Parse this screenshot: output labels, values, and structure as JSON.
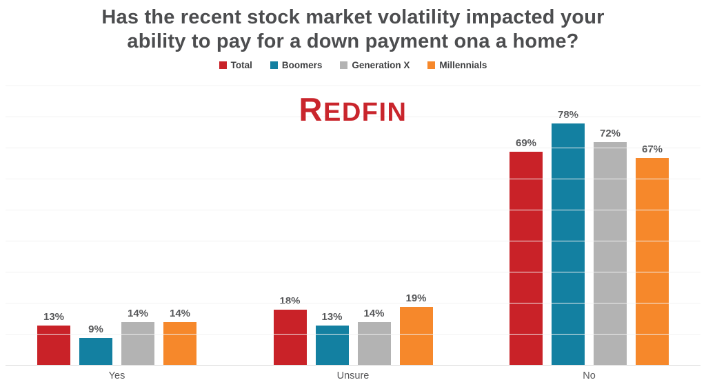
{
  "title_lines": [
    "Has the recent stock market volatility impacted your",
    "ability to pay for a down payment ona a home?"
  ],
  "logo_text": "REDFIN",
  "colors": {
    "brand_red": "#c9252c",
    "title_text": "#4c4d4f",
    "label_text": "#57585a",
    "gridline": "#f1f1f1",
    "axis_line": "#d9d9d9"
  },
  "chart_data": {
    "type": "bar",
    "title": "Has the recent stock market volatility impacted your ability to pay for a down payment ona a home?",
    "categories": [
      "Yes",
      "Unsure",
      "No"
    ],
    "series": [
      {
        "name": "Total",
        "color": "#c92228",
        "values": [
          13,
          18,
          69
        ]
      },
      {
        "name": "Boomers",
        "color": "#1380a1",
        "values": [
          9,
          13,
          78
        ]
      },
      {
        "name": "Generation X",
        "color": "#b3b3b3",
        "values": [
          14,
          14,
          72
        ]
      },
      {
        "name": "Millennials",
        "color": "#f6882b",
        "values": [
          14,
          19,
          67
        ]
      }
    ],
    "value_suffix": "%",
    "xlabel": "",
    "ylabel": "",
    "ylim": [
      0,
      90
    ],
    "grid_step": 10,
    "grid": true,
    "legend_position": "top",
    "data_labels": true,
    "y_axis_ticks_visible": false
  }
}
